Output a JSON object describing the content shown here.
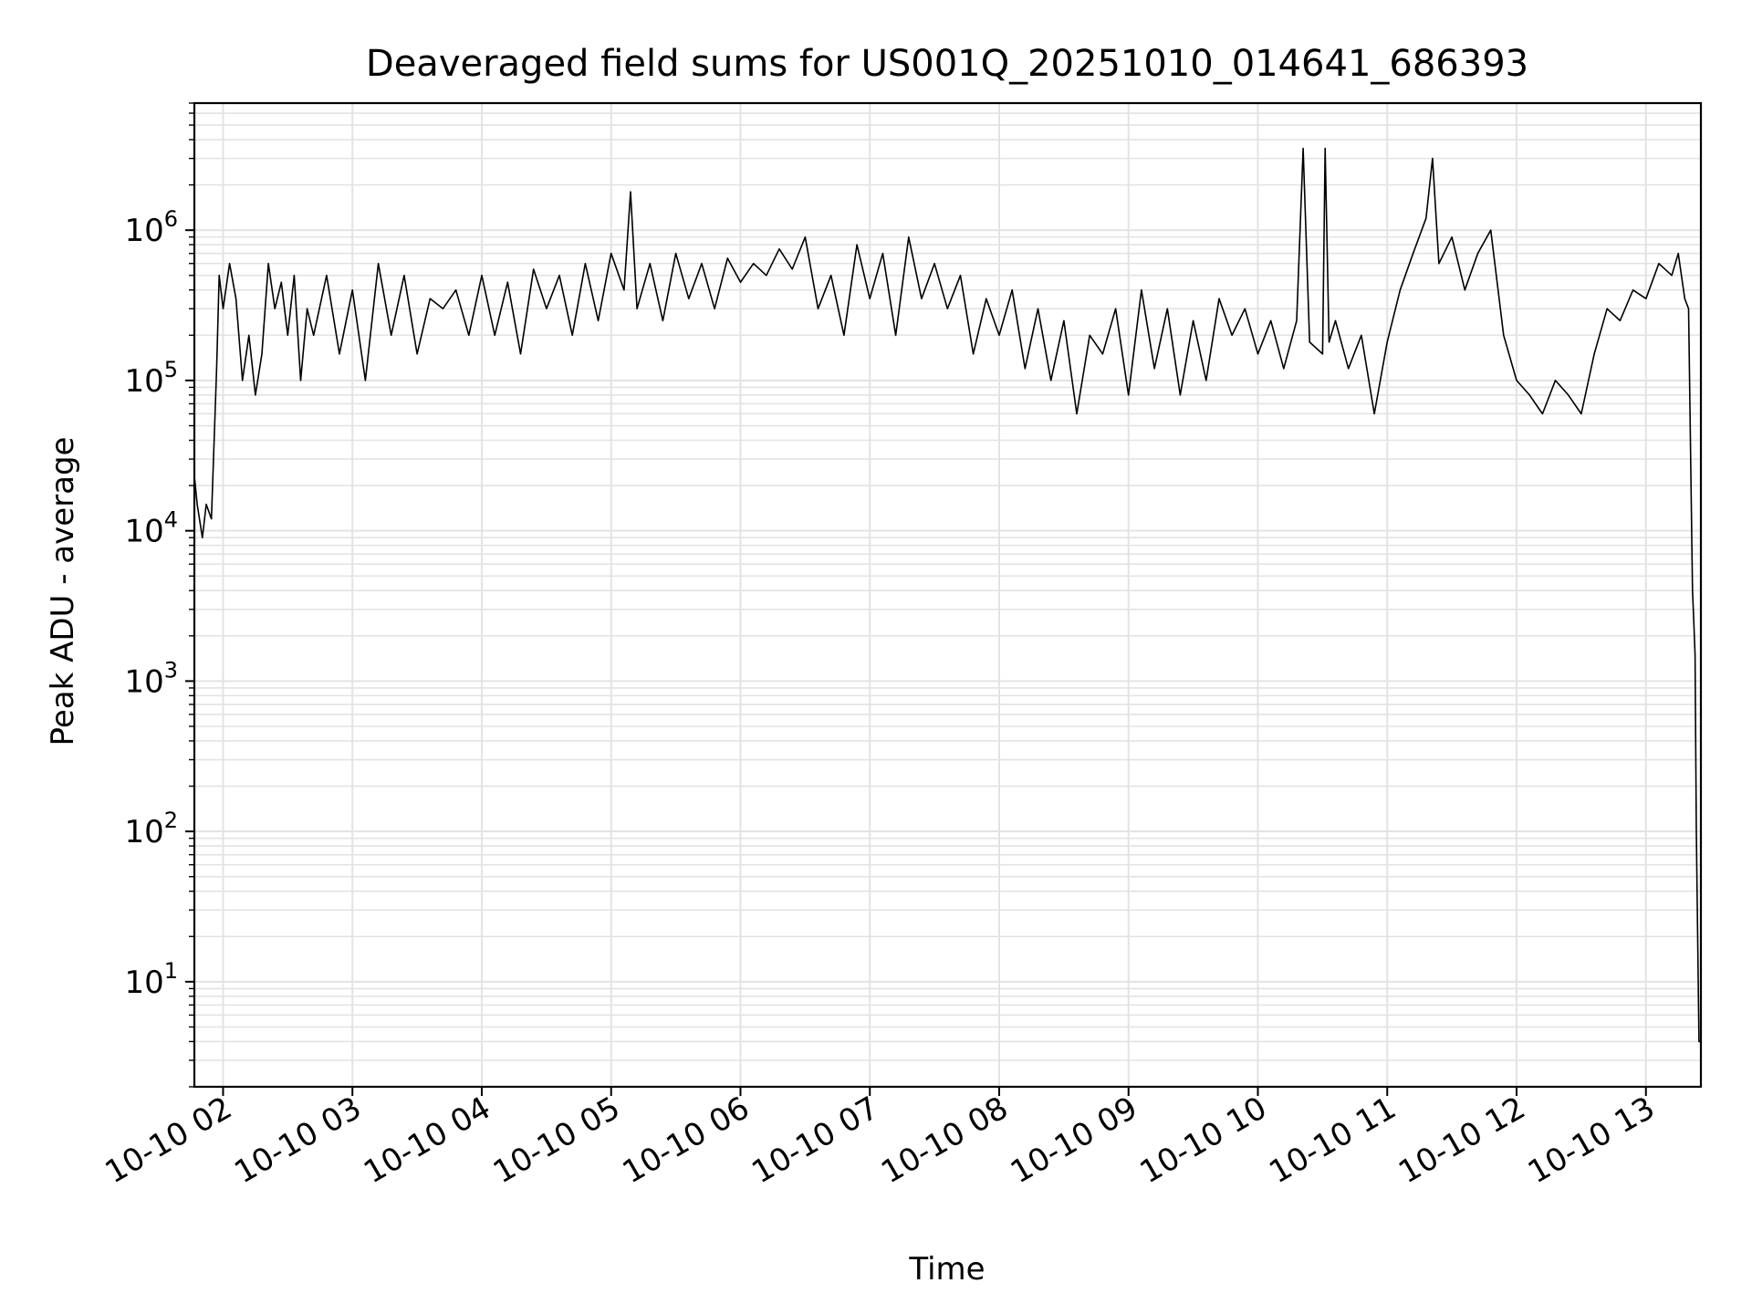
{
  "chart_data": {
    "type": "line",
    "title": "Deaveraged field sums for US001Q_20251010_014641_686393",
    "xlabel": "Time",
    "ylabel": "Peak ADU - average",
    "yscale": "log",
    "ylim": [
      2,
      7000000
    ],
    "xlim": [
      1.778,
      13.425
    ],
    "grid": true,
    "line_color": "#000000",
    "grid_color": "#e3e3e3",
    "x_ticks": [
      {
        "value": 2,
        "label": "10-10 02"
      },
      {
        "value": 3,
        "label": "10-10 03"
      },
      {
        "value": 4,
        "label": "10-10 04"
      },
      {
        "value": 5,
        "label": "10-10 05"
      },
      {
        "value": 6,
        "label": "10-10 06"
      },
      {
        "value": 7,
        "label": "10-10 07"
      },
      {
        "value": 8,
        "label": "10-10 08"
      },
      {
        "value": 9,
        "label": "10-10 09"
      },
      {
        "value": 10,
        "label": "10-10 10"
      },
      {
        "value": 11,
        "label": "10-10 11"
      },
      {
        "value": 12,
        "label": "10-10 12"
      },
      {
        "value": 13,
        "label": "10-10 13"
      }
    ],
    "y_ticks": [
      {
        "value": 10,
        "base": "10",
        "exp": "1"
      },
      {
        "value": 100,
        "base": "10",
        "exp": "2"
      },
      {
        "value": 1000,
        "base": "10",
        "exp": "3"
      },
      {
        "value": 10000,
        "base": "10",
        "exp": "4"
      },
      {
        "value": 100000,
        "base": "10",
        "exp": "5"
      },
      {
        "value": 1000000,
        "base": "10",
        "exp": "6"
      }
    ],
    "series": [
      {
        "name": "field sums",
        "x": [
          1.778,
          1.781,
          1.8,
          1.84,
          1.87,
          1.91,
          1.95,
          1.97,
          2.0,
          2.05,
          2.1,
          2.15,
          2.2,
          2.25,
          2.3,
          2.35,
          2.4,
          2.45,
          2.5,
          2.55,
          2.6,
          2.65,
          2.7,
          2.8,
          2.9,
          3.0,
          3.1,
          3.2,
          3.3,
          3.4,
          3.5,
          3.6,
          3.7,
          3.8,
          3.9,
          4.0,
          4.1,
          4.2,
          4.3,
          4.4,
          4.5,
          4.6,
          4.7,
          4.8,
          4.9,
          5.0,
          5.1,
          5.15,
          5.2,
          5.3,
          5.4,
          5.5,
          5.6,
          5.7,
          5.8,
          5.9,
          6.0,
          6.1,
          6.2,
          6.3,
          6.4,
          6.5,
          6.6,
          6.7,
          6.8,
          6.9,
          7.0,
          7.1,
          7.2,
          7.3,
          7.4,
          7.5,
          7.6,
          7.7,
          7.8,
          7.9,
          8.0,
          8.1,
          8.2,
          8.3,
          8.4,
          8.5,
          8.6,
          8.7,
          8.8,
          8.9,
          9.0,
          9.1,
          9.2,
          9.3,
          9.4,
          9.5,
          9.6,
          9.7,
          9.8,
          9.9,
          10.0,
          10.1,
          10.2,
          10.3,
          10.35,
          10.4,
          10.5,
          10.52,
          10.55,
          10.6,
          10.7,
          10.8,
          10.9,
          11.0,
          11.1,
          11.2,
          11.3,
          11.35,
          11.4,
          11.5,
          11.6,
          11.7,
          11.8,
          11.9,
          12.0,
          12.1,
          12.2,
          12.3,
          12.4,
          12.5,
          12.6,
          12.7,
          12.8,
          12.9,
          13.0,
          13.1,
          13.2,
          13.25,
          13.3,
          13.33,
          13.36,
          13.37,
          13.38,
          13.39,
          13.41,
          13.425
        ],
        "values": [
          18000,
          22000,
          15000,
          9000,
          15000,
          12000,
          120000,
          500000,
          300000,
          600000,
          350000,
          100000,
          200000,
          80000,
          150000,
          600000,
          300000,
          450000,
          200000,
          500000,
          100000,
          300000,
          200000,
          500000,
          150000,
          400000,
          100000,
          600000,
          200000,
          500000,
          150000,
          350000,
          300000,
          400000,
          200000,
          500000,
          200000,
          450000,
          150000,
          550000,
          300000,
          500000,
          200000,
          600000,
          250000,
          700000,
          400000,
          1800000,
          300000,
          600000,
          250000,
          700000,
          350000,
          600000,
          300000,
          650000,
          450000,
          600000,
          500000,
          750000,
          550000,
          900000,
          300000,
          500000,
          200000,
          800000,
          350000,
          700000,
          200000,
          900000,
          350000,
          600000,
          300000,
          500000,
          150000,
          350000,
          200000,
          400000,
          120000,
          300000,
          100000,
          250000,
          60000,
          200000,
          150000,
          300000,
          80000,
          400000,
          120000,
          300000,
          80000,
          250000,
          100000,
          350000,
          200000,
          300000,
          150000,
          250000,
          120000,
          250000,
          3500000,
          180000,
          150000,
          3500000,
          180000,
          250000,
          120000,
          200000,
          60000,
          180000,
          400000,
          700000,
          1200000,
          3000000,
          600000,
          900000,
          400000,
          700000,
          1000000,
          200000,
          100000,
          80000,
          60000,
          100000,
          80000,
          60000,
          150000,
          300000,
          250000,
          400000,
          350000,
          600000,
          500000,
          700000,
          350000,
          300000,
          4000,
          2500,
          1500,
          100,
          4,
          4
        ]
      }
    ]
  }
}
